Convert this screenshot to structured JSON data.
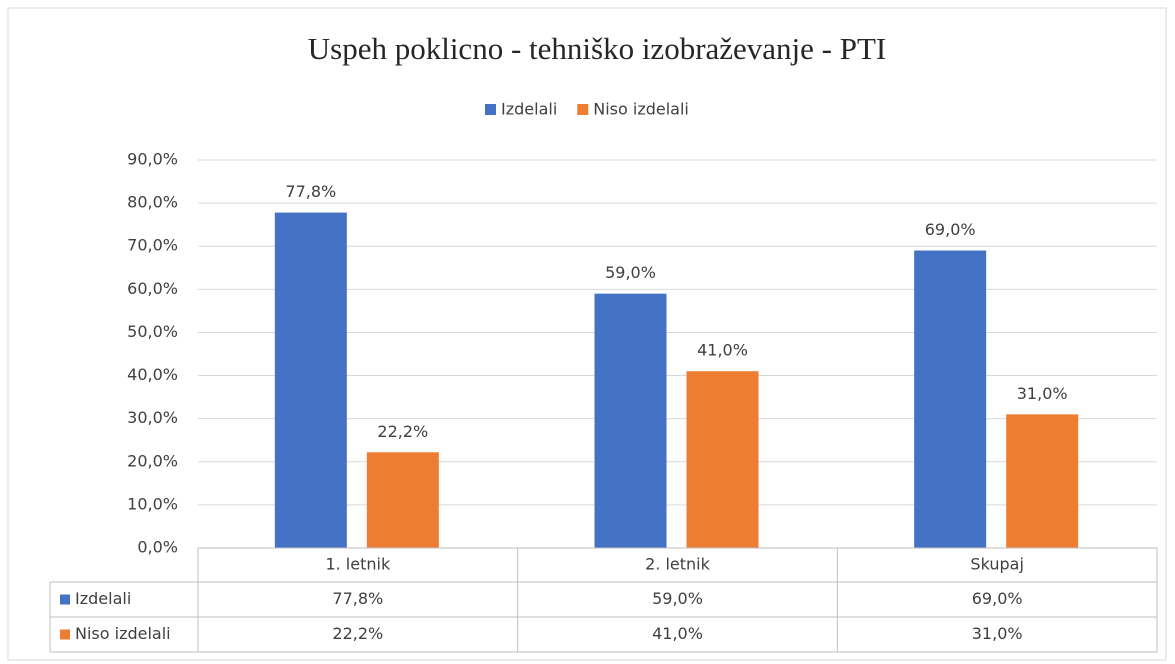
{
  "chart_data": {
    "type": "bar",
    "title": "Uspeh poklicno - tehniško izobraževanje - PTI",
    "categories": [
      "1. letnik",
      "2. letnik",
      "Skupaj"
    ],
    "series": [
      {
        "name": "Izdelali",
        "color": "#4472c4",
        "values": [
          77.8,
          59.0,
          69.0
        ],
        "value_labels": [
          "77,8%",
          "59,0%",
          "69,0%"
        ]
      },
      {
        "name": "Niso izdelali",
        "color": "#ed7d31",
        "values": [
          22.2,
          41.0,
          31.0
        ],
        "value_labels": [
          "22,2%",
          "41,0%",
          "31,0%"
        ]
      }
    ],
    "ylim": [
      0,
      90
    ],
    "yticks": [
      {
        "value": 0,
        "label": "0,0%"
      },
      {
        "value": 10,
        "label": "10,0%"
      },
      {
        "value": 20,
        "label": "20,0%"
      },
      {
        "value": 30,
        "label": "30,0%"
      },
      {
        "value": 40,
        "label": "40,0%"
      },
      {
        "value": 50,
        "label": "50,0%"
      },
      {
        "value": 60,
        "label": "60,0%"
      },
      {
        "value": 70,
        "label": "70,0%"
      },
      {
        "value": 80,
        "label": "80,0%"
      },
      {
        "value": 90,
        "label": "90,0%"
      }
    ],
    "grid": true,
    "legend": "top",
    "data_table": true
  }
}
